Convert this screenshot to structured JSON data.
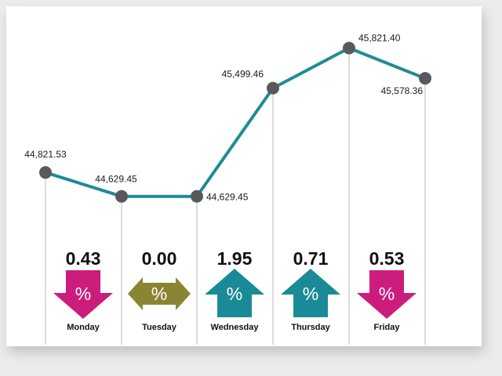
{
  "chart_data": {
    "type": "line",
    "categories": [
      "Monday",
      "Tuesday",
      "Wednesday",
      "Thursday",
      "Friday",
      ""
    ],
    "values": [
      44821.53,
      44629.45,
      44629.45,
      45499.46,
      45821.4,
      45578.36
    ],
    "value_labels": [
      "44,821.53",
      "44,629.45",
      "44,629.45",
      "45,499.46",
      "45,821.40",
      "45,578.36"
    ],
    "changes": [
      {
        "day": "Monday",
        "value": "0.43",
        "direction": "down"
      },
      {
        "day": "Tuesday",
        "value": "0.00",
        "direction": "flat"
      },
      {
        "day": "Wednesday",
        "value": "1.95",
        "direction": "up"
      },
      {
        "day": "Thursday",
        "value": "0.71",
        "direction": "up"
      },
      {
        "day": "Friday",
        "value": "0.53",
        "direction": "down"
      }
    ],
    "arrow_symbol": "%",
    "ylim": [
      44300,
      46000
    ],
    "grid": false,
    "colors": {
      "line": "#1e8c95",
      "point": "#58595b",
      "divider": "#b9b9b9",
      "down": "#cc1d7d",
      "flat": "#8a8533",
      "up": "#1a8b96"
    }
  }
}
